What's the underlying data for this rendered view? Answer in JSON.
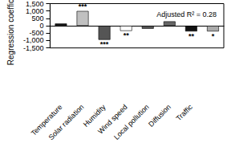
{
  "chart_data": {
    "type": "bar",
    "subtitle": "Adjusted R² = 0.28",
    "y_label": "Regression coefficient",
    "categories": [
      "Temperature",
      "Solar radiation",
      "Humidity",
      "Wind speed",
      "Local pollution",
      "Diffusion",
      "Traffic",
      null
    ],
    "values": [
      150,
      1000,
      -950,
      -350,
      -200,
      300,
      -380,
      -380
    ],
    "annotations": [
      null,
      "***",
      "***",
      "**",
      null,
      null,
      "**",
      "*"
    ],
    "colors": [
      "#111111",
      "#c0c0c0",
      "#555555",
      "#ffffff",
      "#555555",
      "#666666",
      "#111111",
      "#aaaaaa"
    ],
    "ylim": [
      -1500,
      1500
    ],
    "yticks": [
      -1500,
      -1000,
      -500,
      0,
      500,
      1000,
      1500
    ],
    "grid": false
  }
}
